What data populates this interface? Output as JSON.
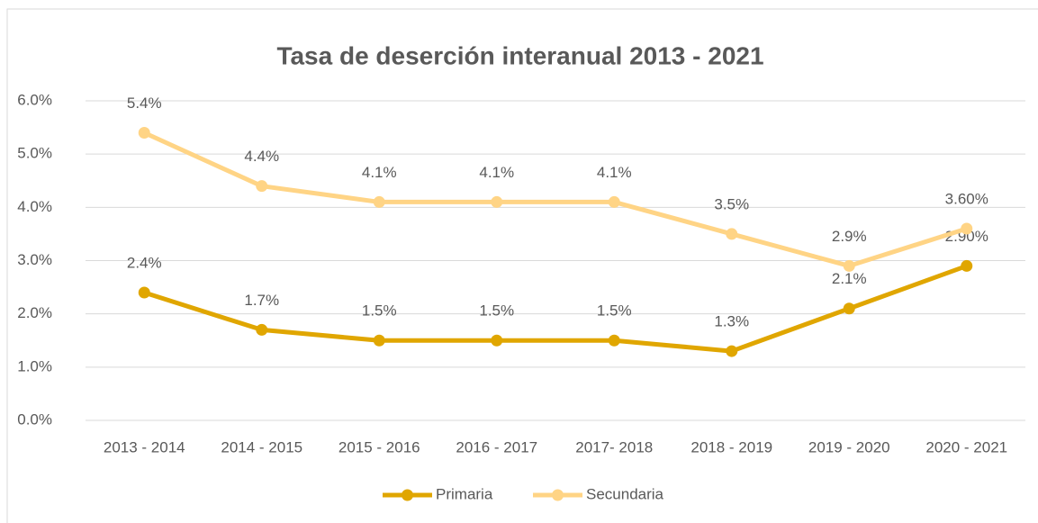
{
  "chart_data": {
    "type": "line",
    "title": "Tasa de deserción interanual 2013 - 2021",
    "categories": [
      "2013 - 2014",
      "2014 - 2015",
      "2015 - 2016",
      "2016 - 2017",
      "2017- 2018",
      "2018 - 2019",
      "2019 - 2020",
      "2020 - 2021"
    ],
    "series": [
      {
        "name": "Primaria",
        "color": "#e0a600",
        "values": [
          2.4,
          1.7,
          1.5,
          1.5,
          1.5,
          1.3,
          2.1,
          2.9
        ],
        "value_labels": [
          "2.4%",
          "1.7%",
          "1.5%",
          "1.5%",
          "1.5%",
          "1.3%",
          "2.1%",
          "2.90%"
        ]
      },
      {
        "name": "Secundaria",
        "color": "#ffd485",
        "values": [
          5.4,
          4.4,
          4.1,
          4.1,
          4.1,
          3.5,
          2.9,
          3.6
        ],
        "value_labels": [
          "5.4%",
          "4.4%",
          "4.1%",
          "4.1%",
          "4.1%",
          "3.5%",
          "2.9%",
          "3.60%"
        ]
      }
    ],
    "ylim": [
      0,
      6
    ],
    "yticks": [
      {
        "value": 0,
        "label": "0.0%"
      },
      {
        "value": 1,
        "label": "1.0%"
      },
      {
        "value": 2,
        "label": "2.0%"
      },
      {
        "value": 3,
        "label": "3.0%"
      },
      {
        "value": 4,
        "label": "4.0%"
      },
      {
        "value": 5,
        "label": "5.0%"
      },
      {
        "value": 6,
        "label": "6.0%"
      }
    ],
    "grid": true,
    "legend": "bottom"
  }
}
